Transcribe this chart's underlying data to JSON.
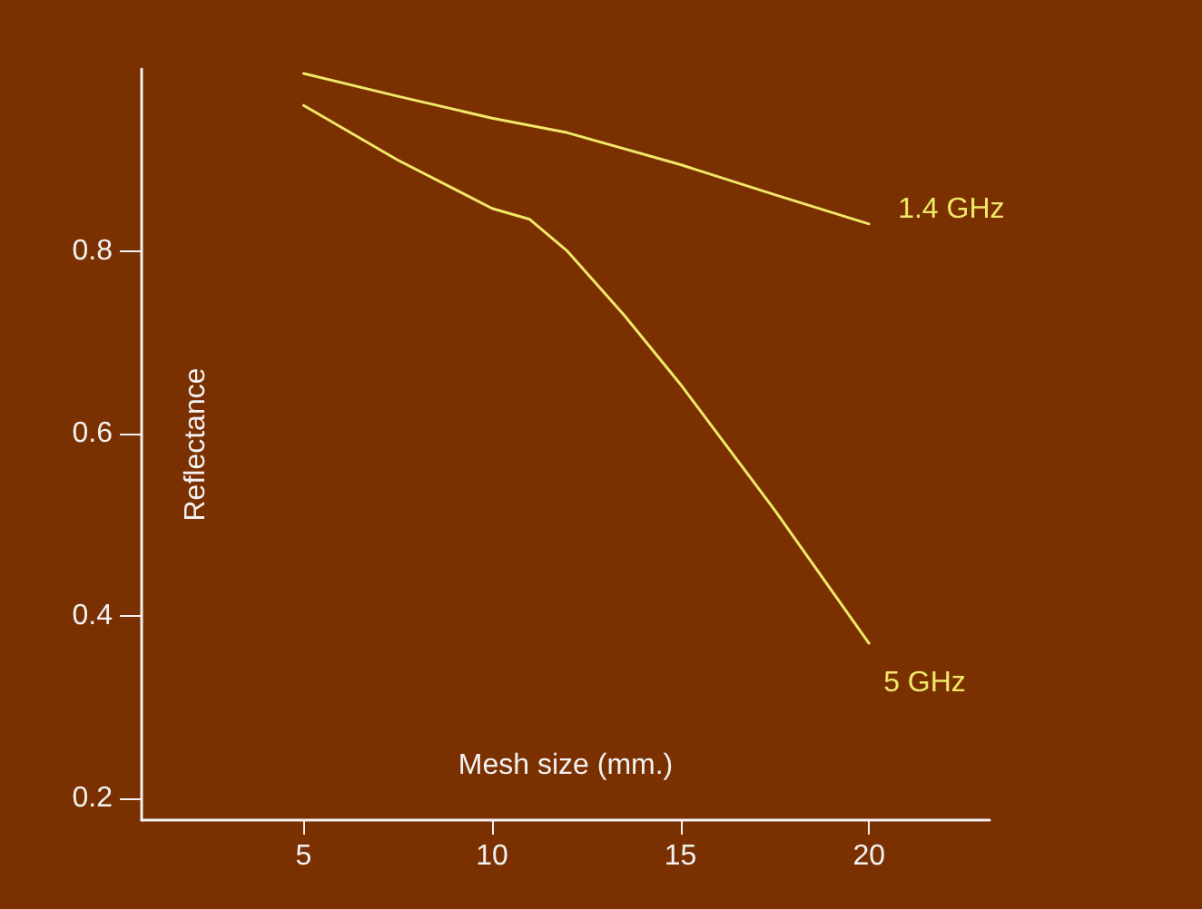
{
  "chart_data": {
    "type": "line",
    "xlabel": "Mesh size (mm.)",
    "ylabel": "Reflectance",
    "xlim": [
      0.7,
      23.2
    ],
    "ylim": [
      0.176,
      1.0
    ],
    "xticks": [
      5,
      10,
      15,
      20
    ],
    "yticks": [
      0.2,
      0.4,
      0.6,
      0.8
    ],
    "series": [
      {
        "name": "1.4 GHz",
        "color": "#f0e868",
        "x": [
          5,
          7.5,
          10,
          12,
          15,
          17.5,
          20
        ],
        "values": [
          0.995,
          0.97,
          0.946,
          0.93,
          0.895,
          0.862,
          0.83
        ]
      },
      {
        "name": "5 GHz",
        "color": "#f0e868",
        "x": [
          5,
          7.5,
          10,
          11,
          12,
          13.5,
          15,
          17.5,
          20
        ],
        "values": [
          0.96,
          0.9,
          0.847,
          0.835,
          0.8,
          0.73,
          0.654,
          0.516,
          0.37
        ]
      }
    ],
    "grid": false,
    "legend": false,
    "marker": "none",
    "line_style": "solid"
  }
}
